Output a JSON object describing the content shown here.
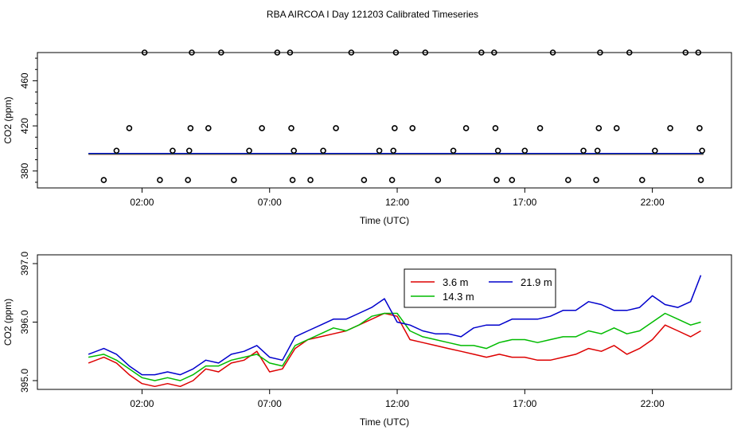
{
  "title": "RBA AIRCOA I  Day 121203  Calibrated Timeseries",
  "colors": {
    "red": "#dd0000",
    "green": "#00bb00",
    "blue": "#0000cc",
    "axis": "#000000"
  },
  "chart_data": [
    {
      "type": "scatter",
      "panel": "top",
      "xlabel": "Time (UTC)",
      "ylabel": "CO2 (ppm)",
      "xlim": [
        -2.1,
        25.1
      ],
      "ylim": [
        365,
        485
      ],
      "xticks": [
        2,
        7,
        12,
        17,
        22
      ],
      "xtick_labels": [
        "02:00",
        "07:00",
        "12:00",
        "17:00",
        "22:00"
      ],
      "yticks": [
        380,
        420,
        460
      ],
      "ytick_labels": [
        "380",
        "420",
        "460"
      ],
      "line_level": 395.5,
      "line_x_range": [
        -0.1,
        24.0
      ],
      "points": {
        "x": [
          0.5,
          1.0,
          1.5,
          2.1,
          2.7,
          3.2,
          3.8,
          3.85,
          3.9,
          3.95,
          4.6,
          5.1,
          5.6,
          6.2,
          6.7,
          7.3,
          7.8,
          7.85,
          7.9,
          7.95,
          8.6,
          9.1,
          9.6,
          10.2,
          10.7,
          11.3,
          11.8,
          11.85,
          11.9,
          11.95,
          12.6,
          13.1,
          13.6,
          14.2,
          14.7,
          15.3,
          15.8,
          15.85,
          15.9,
          15.95,
          16.5,
          17.0,
          17.6,
          18.1,
          18.7,
          19.3,
          19.8,
          19.85,
          19.9,
          19.95,
          20.6,
          21.1,
          21.6,
          22.1,
          22.7,
          23.3,
          23.8,
          23.85,
          23.9,
          23.95
        ],
        "y": [
          372,
          398,
          418,
          485,
          372,
          398,
          372,
          398,
          418,
          485,
          418,
          485,
          372,
          398,
          418,
          485,
          485,
          418,
          372,
          398,
          372,
          398,
          418,
          485,
          372,
          398,
          372,
          398,
          418,
          485,
          418,
          485,
          372,
          398,
          418,
          485,
          485,
          418,
          372,
          398,
          372,
          398,
          418,
          485,
          372,
          398,
          372,
          398,
          418,
          485,
          418,
          485,
          372,
          398,
          418,
          485,
          485,
          418,
          372,
          398
        ]
      }
    },
    {
      "type": "line",
      "panel": "bottom",
      "xlabel": "Time (UTC)",
      "ylabel": "CO2 (ppm)",
      "xlim": [
        -2.1,
        25.1
      ],
      "ylim": [
        394.85,
        397.15
      ],
      "xticks": [
        2,
        7,
        12,
        17,
        22
      ],
      "xtick_labels": [
        "02:00",
        "07:00",
        "12:00",
        "17:00",
        "22:00"
      ],
      "yticks": [
        395.0,
        396.0,
        397.0
      ],
      "ytick_labels": [
        "395.0",
        "396.0",
        "397.0"
      ],
      "legend": [
        "3.6 m",
        "14.3 m",
        "21.9 m"
      ],
      "series": [
        {
          "name": "3.6 m",
          "color": "#dd0000",
          "x": [
            -0.1,
            0.5,
            1.0,
            1.5,
            2.0,
            2.5,
            3.0,
            3.5,
            4.0,
            4.5,
            5.0,
            5.5,
            6.0,
            6.5,
            7.0,
            7.5,
            8.0,
            8.5,
            9.0,
            9.5,
            10.0,
            10.5,
            11.0,
            11.5,
            12.0,
            12.5,
            13.0,
            13.5,
            14.0,
            14.5,
            15.0,
            15.5,
            16.0,
            16.5,
            17.0,
            17.5,
            18.0,
            18.5,
            19.0,
            19.5,
            20.0,
            20.5,
            21.0,
            21.5,
            22.0,
            22.5,
            23.0,
            23.5,
            23.9
          ],
          "y": [
            395.3,
            395.4,
            395.3,
            395.1,
            394.95,
            394.9,
            394.95,
            394.9,
            395.0,
            395.2,
            395.15,
            395.3,
            395.35,
            395.5,
            395.15,
            395.2,
            395.55,
            395.7,
            395.75,
            395.8,
            395.85,
            395.95,
            396.05,
            396.15,
            396.1,
            395.7,
            395.65,
            395.6,
            395.55,
            395.5,
            395.45,
            395.4,
            395.45,
            395.4,
            395.4,
            395.35,
            395.35,
            395.4,
            395.45,
            395.55,
            395.5,
            395.6,
            395.45,
            395.55,
            395.7,
            395.95,
            395.85,
            395.75,
            395.85
          ]
        },
        {
          "name": "14.3 m",
          "color": "#00bb00",
          "x": [
            -0.1,
            0.5,
            1.0,
            1.5,
            2.0,
            2.5,
            3.0,
            3.5,
            4.0,
            4.5,
            5.0,
            5.5,
            6.0,
            6.5,
            7.0,
            7.5,
            8.0,
            8.5,
            9.0,
            9.5,
            10.0,
            10.5,
            11.0,
            11.5,
            12.0,
            12.5,
            13.0,
            13.5,
            14.0,
            14.5,
            15.0,
            15.5,
            16.0,
            16.5,
            17.0,
            17.5,
            18.0,
            18.5,
            19.0,
            19.5,
            20.0,
            20.5,
            21.0,
            21.5,
            22.0,
            22.5,
            23.0,
            23.5,
            23.9
          ],
          "y": [
            395.4,
            395.45,
            395.35,
            395.2,
            395.05,
            395.0,
            395.05,
            395.0,
            395.1,
            395.25,
            395.25,
            395.35,
            395.4,
            395.45,
            395.3,
            395.25,
            395.6,
            395.7,
            395.8,
            395.9,
            395.85,
            395.95,
            396.1,
            396.15,
            396.15,
            395.85,
            395.75,
            395.7,
            395.65,
            395.6,
            395.6,
            395.55,
            395.65,
            395.7,
            395.7,
            395.65,
            395.7,
            395.75,
            395.75,
            395.85,
            395.8,
            395.9,
            395.8,
            395.85,
            396.0,
            396.15,
            396.05,
            395.95,
            396.0
          ]
        },
        {
          "name": "21.9 m",
          "color": "#0000cc",
          "x": [
            -0.1,
            0.5,
            1.0,
            1.5,
            2.0,
            2.5,
            3.0,
            3.5,
            4.0,
            4.5,
            5.0,
            5.5,
            6.0,
            6.5,
            7.0,
            7.5,
            8.0,
            8.5,
            9.0,
            9.5,
            10.0,
            10.5,
            11.0,
            11.5,
            12.0,
            12.5,
            13.0,
            13.5,
            14.0,
            14.5,
            15.0,
            15.5,
            16.0,
            16.5,
            17.0,
            17.5,
            18.0,
            18.5,
            19.0,
            19.5,
            20.0,
            20.5,
            21.0,
            21.5,
            22.0,
            22.5,
            23.0,
            23.5,
            23.9
          ],
          "y": [
            395.45,
            395.55,
            395.45,
            395.25,
            395.1,
            395.1,
            395.15,
            395.1,
            395.2,
            395.35,
            395.3,
            395.45,
            395.5,
            395.6,
            395.4,
            395.35,
            395.75,
            395.85,
            395.95,
            396.05,
            396.05,
            396.15,
            396.25,
            396.4,
            396.0,
            395.95,
            395.85,
            395.8,
            395.8,
            395.75,
            395.9,
            395.95,
            395.95,
            396.05,
            396.05,
            396.05,
            396.1,
            396.2,
            396.2,
            396.35,
            396.3,
            396.2,
            396.2,
            396.25,
            396.45,
            396.3,
            396.25,
            396.35,
            396.8
          ]
        }
      ]
    }
  ]
}
